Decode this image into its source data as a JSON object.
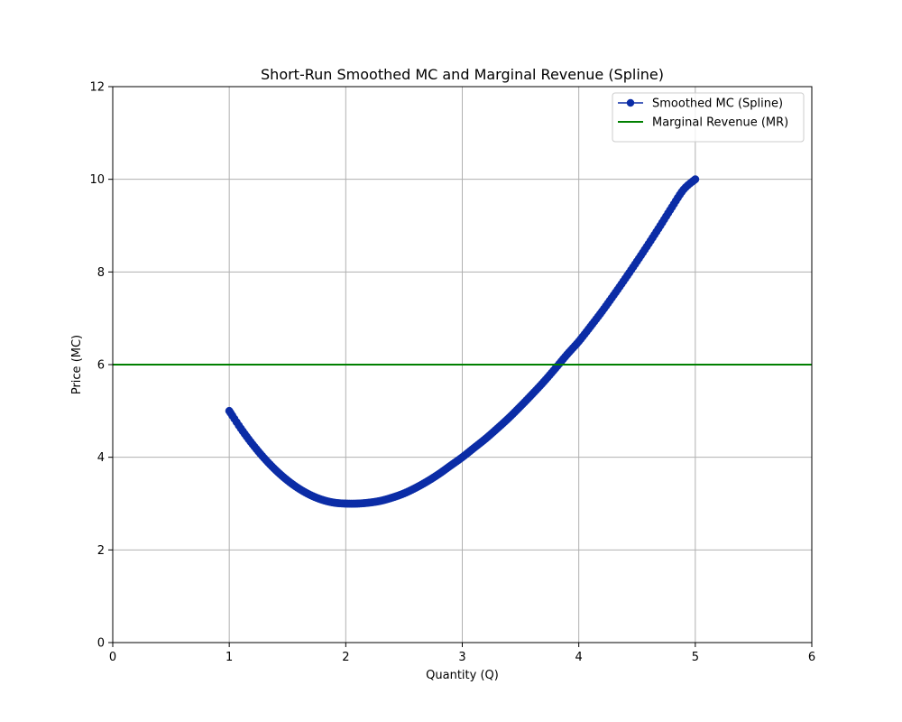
{
  "chart_data": {
    "type": "line",
    "title": "Short-Run Smoothed MC and Marginal Revenue (Spline)",
    "xlabel": "Quantity (Q)",
    "ylabel": "Price (MC)",
    "xlim": [
      0,
      6
    ],
    "ylim": [
      0,
      12
    ],
    "xticks": [
      0,
      1,
      2,
      3,
      4,
      5,
      6
    ],
    "yticks": [
      0,
      2,
      4,
      6,
      8,
      10,
      12
    ],
    "grid": true,
    "legend_position": "top-right",
    "series": [
      {
        "name": "Smoothed MC (Spline)",
        "style": "line-with-markers",
        "color": "#0b2ca6",
        "points": [
          [
            1.0,
            5.0
          ],
          [
            1.1,
            4.62
          ],
          [
            1.2,
            4.28
          ],
          [
            1.3,
            3.98
          ],
          [
            1.4,
            3.72
          ],
          [
            1.5,
            3.5
          ],
          [
            1.6,
            3.32
          ],
          [
            1.7,
            3.18
          ],
          [
            1.8,
            3.08
          ],
          [
            1.9,
            3.02
          ],
          [
            2.0,
            3.0
          ],
          [
            2.1,
            3.0
          ],
          [
            2.2,
            3.02
          ],
          [
            2.3,
            3.06
          ],
          [
            2.4,
            3.13
          ],
          [
            2.5,
            3.22
          ],
          [
            2.6,
            3.34
          ],
          [
            2.7,
            3.48
          ],
          [
            2.8,
            3.64
          ],
          [
            2.9,
            3.82
          ],
          [
            3.0,
            4.0
          ],
          [
            3.1,
            4.2
          ],
          [
            3.2,
            4.4
          ],
          [
            3.3,
            4.62
          ],
          [
            3.4,
            4.85
          ],
          [
            3.5,
            5.1
          ],
          [
            3.6,
            5.36
          ],
          [
            3.7,
            5.63
          ],
          [
            3.8,
            5.92
          ],
          [
            3.9,
            6.22
          ],
          [
            4.0,
            6.5
          ],
          [
            4.1,
            6.82
          ],
          [
            4.2,
            7.15
          ],
          [
            4.3,
            7.5
          ],
          [
            4.4,
            7.86
          ],
          [
            4.5,
            8.23
          ],
          [
            4.6,
            8.61
          ],
          [
            4.7,
            9.0
          ],
          [
            4.8,
            9.4
          ],
          [
            4.9,
            9.78
          ],
          [
            5.0,
            10.0
          ]
        ]
      },
      {
        "name": "Marginal Revenue (MR)",
        "style": "line",
        "color": "#008000",
        "y_constant": 6
      }
    ]
  }
}
